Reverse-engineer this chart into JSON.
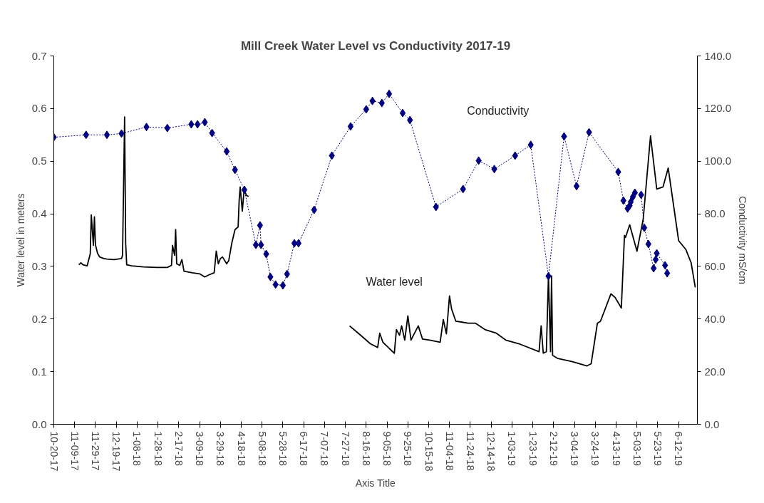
{
  "chart_data": {
    "type": "line",
    "title": "Mill Creek Water Level vs Conductivity 2017-19",
    "xlabel": "Axis Title",
    "ylabel": "Water level in meters",
    "y2label": "Conductivity mS/cm",
    "xlim": [
      "2017-10-20",
      "2019-06-30"
    ],
    "xticks": [
      {
        "value": "2017-10-20",
        "label": "10-20-17"
      },
      {
        "value": "2017-11-09",
        "label": "11-09-17"
      },
      {
        "value": "2017-11-29",
        "label": "11-29-17"
      },
      {
        "value": "2017-12-19",
        "label": "12-19-17"
      },
      {
        "value": "2018-01-08",
        "label": "1-08-18"
      },
      {
        "value": "2018-01-28",
        "label": "1-28-18"
      },
      {
        "value": "2018-02-17",
        "label": "2-17-18"
      },
      {
        "value": "2018-03-09",
        "label": "3-09-18"
      },
      {
        "value": "2018-03-29",
        "label": "3-29-18"
      },
      {
        "value": "2018-04-18",
        "label": "4-18-18"
      },
      {
        "value": "2018-05-08",
        "label": "5-08-18"
      },
      {
        "value": "2018-05-28",
        "label": "5-28-18"
      },
      {
        "value": "2018-06-17",
        "label": "6-17-18"
      },
      {
        "value": "2018-07-07",
        "label": "7-07-18"
      },
      {
        "value": "2018-07-27",
        "label": "7-27-18"
      },
      {
        "value": "2018-08-16",
        "label": "8-16-18"
      },
      {
        "value": "2018-09-05",
        "label": "9-05-18"
      },
      {
        "value": "2018-09-25",
        "label": "9-25-18"
      },
      {
        "value": "2018-10-15",
        "label": "10-15-18"
      },
      {
        "value": "2018-11-04",
        "label": "11-04-18"
      },
      {
        "value": "2018-11-24",
        "label": "11-24-18"
      },
      {
        "value": "2018-12-14",
        "label": "12-14-18"
      },
      {
        "value": "2019-01-03",
        "label": "1-03-19"
      },
      {
        "value": "2019-01-23",
        "label": "1-23-19"
      },
      {
        "value": "2019-02-12",
        "label": "2-12-19"
      },
      {
        "value": "2019-03-04",
        "label": "3-04-19"
      },
      {
        "value": "2019-03-24",
        "label": "3-24-19"
      },
      {
        "value": "2019-04-13",
        "label": "4-13-19"
      },
      {
        "value": "2019-05-03",
        "label": "5-03-19"
      },
      {
        "value": "2019-05-23",
        "label": "5-23-19"
      },
      {
        "value": "2019-06-12",
        "label": "6-12-19"
      }
    ],
    "ylim": [
      0,
      0.7
    ],
    "yticks": [
      {
        "value": 0,
        "label": "0.0"
      },
      0.1,
      0.2,
      0.3,
      0.4,
      0.5,
      0.6,
      0.7
    ],
    "y2lim": [
      0,
      140
    ],
    "y2ticks": [
      {
        "value": 0,
        "label": "0.0"
      },
      {
        "value": 20,
        "label": "20.0"
      },
      {
        "value": 40,
        "label": "40.0"
      },
      {
        "value": 60,
        "label": "60.0"
      },
      {
        "value": 80,
        "label": "80.0"
      },
      {
        "value": 100,
        "label": "100.0"
      },
      {
        "value": 120,
        "label": "120.0"
      },
      {
        "value": 140,
        "label": "140.0"
      }
    ],
    "series": [
      {
        "name": "Water level",
        "color": "#000000",
        "marker": "none",
        "line_style": "solid",
        "x": [
          "2017-11-13",
          "2017-11-15",
          "2017-11-17",
          "2017-11-21",
          "2017-11-24",
          "2017-11-25",
          "2017-11-27",
          "2017-11-28",
          "2017-11-29",
          "2017-12-01",
          "2017-12-03",
          "2017-12-07",
          "2017-12-10",
          "2017-12-17",
          "2017-12-24",
          "2017-12-25",
          "2017-12-27",
          "2017-12-28",
          "2017-12-29",
          "2018-01-03",
          "2018-01-14",
          "2018-01-27",
          "2018-02-06",
          "2018-02-10",
          "2018-02-11",
          "2018-02-13",
          "2018-02-14",
          "2018-02-15",
          "2018-02-18",
          "2018-02-20",
          "2018-02-22",
          "2018-03-02",
          "2018-03-09",
          "2018-03-14",
          "2018-03-18",
          "2018-03-23",
          "2018-03-25",
          "2018-03-27",
          "2018-03-29",
          "2018-03-31",
          "2018-04-04",
          "2018-04-06",
          "2018-04-09",
          "2018-04-12",
          "2018-04-15",
          "2018-04-16",
          "2018-04-17",
          "2018-04-19",
          "2018-04-21",
          "2018-04-22",
          "2018-04-23",
          "2018-04-25",
          "2018-06-15",
          "2018-07-31",
          "2018-08-09",
          "2018-08-20",
          "2018-08-27",
          "2018-08-29",
          "2018-09-01",
          "2018-09-12",
          "2018-09-14",
          "2018-09-17",
          "2018-09-19",
          "2018-09-22",
          "2018-09-25",
          "2018-09-28",
          "2018-10-05",
          "2018-10-09",
          "2018-10-16",
          "2018-10-26",
          "2018-10-29",
          "2018-11-01",
          "2018-11-04",
          "2018-11-06",
          "2018-11-10",
          "2018-11-22",
          "2018-11-29",
          "2018-12-08",
          "2018-12-19",
          "2018-12-28",
          "2019-01-11",
          "2019-01-29",
          "2019-01-31",
          "2019-02-02",
          "2019-02-05",
          "2019-02-07",
          "2019-02-09",
          "2019-02-10",
          "2019-02-11",
          "2019-02-16",
          "2019-03-02",
          "2019-03-16",
          "2019-03-20",
          "2019-03-26",
          "2019-03-29",
          "2019-04-08",
          "2019-04-12",
          "2019-04-18",
          "2019-04-21",
          "2019-04-22",
          "2019-04-26",
          "2019-05-03",
          "2019-05-09",
          "2019-05-16",
          "2019-05-22",
          "2019-05-28",
          "2019-06-02",
          "2019-06-12",
          "2019-06-19",
          "2019-06-24",
          "2019-06-28"
        ],
        "values": [
          0.303,
          0.307,
          0.303,
          0.301,
          0.324,
          0.398,
          0.34,
          0.394,
          0.341,
          0.325,
          0.318,
          0.315,
          0.314,
          0.313,
          0.315,
          0.321,
          0.584,
          0.345,
          0.303,
          0.301,
          0.299,
          0.298,
          0.298,
          0.302,
          0.34,
          0.321,
          0.37,
          0.305,
          0.302,
          0.313,
          0.291,
          0.288,
          0.286,
          0.28,
          0.284,
          0.288,
          0.329,
          0.305,
          0.315,
          0.318,
          0.305,
          0.311,
          0.345,
          0.37,
          0.375,
          0.426,
          0.451,
          0.405,
          0.451,
          0.44,
          0.435,
          0.433,
          null,
          0.187,
          0.172,
          0.153,
          0.146,
          0.173,
          0.156,
          0.135,
          0.18,
          0.169,
          0.187,
          0.16,
          0.206,
          0.16,
          0.187,
          0.162,
          0.16,
          0.156,
          0.199,
          0.172,
          0.244,
          0.219,
          0.196,
          0.192,
          0.192,
          0.18,
          0.173,
          0.16,
          0.152,
          0.138,
          0.187,
          0.135,
          0.138,
          0.282,
          0.138,
          0.282,
          0.131,
          0.125,
          0.119,
          0.111,
          0.115,
          0.192,
          0.196,
          0.248,
          0.241,
          0.221,
          0.359,
          0.355,
          0.379,
          0.329,
          0.39,
          0.548,
          0.447,
          0.451,
          0.487,
          0.349,
          0.332,
          0.307,
          0.26
        ]
      },
      {
        "name": "Conductivity",
        "color": "#000080",
        "marker": "diamond",
        "line_style": "dotted",
        "axis": "y2",
        "x": [
          "2017-10-20",
          "2017-11-20",
          "2017-12-10",
          "2017-12-24",
          "2018-01-17",
          "2018-02-06",
          "2018-03-01",
          "2018-03-07",
          "2018-03-14",
          "2018-03-21",
          "2018-04-04",
          "2018-04-12",
          "2018-04-21",
          "2018-05-02",
          "2018-05-06",
          "2018-05-07",
          "2018-05-12",
          "2018-05-16",
          "2018-05-21",
          "2018-05-28",
          "2018-06-01",
          "2018-06-08",
          "2018-06-12",
          "2018-06-27",
          "2018-07-14",
          "2018-08-01",
          "2018-08-16",
          "2018-08-22",
          "2018-08-31",
          "2018-09-07",
          "2018-09-20",
          "2018-09-27",
          "2018-10-22",
          "2018-11-17",
          "2018-12-02",
          "2018-12-17",
          "2019-01-06",
          "2019-01-21",
          "2019-02-07",
          "2019-02-22",
          "2019-03-06",
          "2019-03-18",
          "2019-04-15",
          "2019-04-20",
          "2019-04-24",
          "2019-04-26",
          "2019-04-27",
          "2019-04-29",
          "2019-05-01",
          "2019-05-07",
          "2019-05-10",
          "2019-05-14",
          "2019-05-19",
          "2019-05-21",
          "2019-05-22",
          "2019-05-30",
          "2019-06-01"
        ],
        "values": [
          109.1,
          110.0,
          110.0,
          110.5,
          113.0,
          112.6,
          114.0,
          114.0,
          114.8,
          110.7,
          103.7,
          96.7,
          89.1,
          68.2,
          75.6,
          68.2,
          64.7,
          56.0,
          53.1,
          52.8,
          57.1,
          68.8,
          68.8,
          81.5,
          102.1,
          113.2,
          119.7,
          122.9,
          122.1,
          125.6,
          118.3,
          115.6,
          82.6,
          89.4,
          100.2,
          97.0,
          102.1,
          106.2,
          56.3,
          109.4,
          90.5,
          111.0,
          95.9,
          85.0,
          82.0,
          83.1,
          84.5,
          86.4,
          88.0,
          87.2,
          74.7,
          68.5,
          59.3,
          62.6,
          65.0,
          60.4,
          57.4
        ]
      }
    ]
  }
}
